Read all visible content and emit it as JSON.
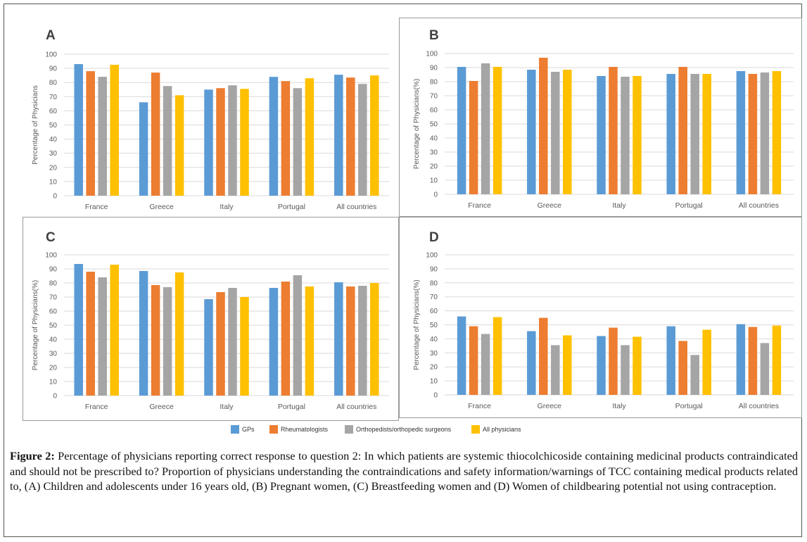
{
  "chart_data": [
    {
      "type": "bar",
      "panel_label": "A",
      "categories": [
        "France",
        "Greece",
        "Italy",
        "Portugal",
        "All countries"
      ],
      "ylabel": "Percentage of Physicians",
      "ylim": [
        0,
        100
      ],
      "yticks": [
        0,
        10,
        20,
        30,
        40,
        50,
        60,
        70,
        80,
        90,
        100
      ],
      "grid": true,
      "series": [
        {
          "name": "GPs",
          "values": [
            93,
            66,
            75,
            84,
            85.5
          ]
        },
        {
          "name": "Rheumatologists",
          "values": [
            88,
            87,
            76,
            81,
            83.5
          ]
        },
        {
          "name": "Orthopedists/orthopedic surgeons",
          "values": [
            84,
            77.5,
            78,
            76,
            79
          ]
        },
        {
          "name": "All physicians",
          "values": [
            92.5,
            71,
            75.5,
            83,
            85
          ]
        }
      ]
    },
    {
      "type": "bar",
      "panel_label": "B",
      "categories": [
        "France",
        "Greece",
        "Italy",
        "Portugal",
        "All countries"
      ],
      "ylabel": "Percentage of Physicians(%)",
      "ylim": [
        0,
        100
      ],
      "yticks": [
        0,
        10,
        20,
        30,
        40,
        50,
        60,
        70,
        80,
        90,
        100
      ],
      "grid": true,
      "series": [
        {
          "name": "GPs",
          "values": [
            90.5,
            88.5,
            84,
            85.5,
            87.5
          ]
        },
        {
          "name": "Rheumatologists",
          "values": [
            80.5,
            97,
            90.5,
            90.5,
            85.5
          ]
        },
        {
          "name": "Orthopedists/orthopedic surgeons",
          "values": [
            93,
            87,
            83.5,
            85.5,
            86.5
          ]
        },
        {
          "name": "All physicians",
          "values": [
            90.5,
            88.5,
            84,
            85.5,
            87.5
          ]
        }
      ]
    },
    {
      "type": "bar",
      "panel_label": "C",
      "categories": [
        "France",
        "Greece",
        "Italy",
        "Portugal",
        "All countries"
      ],
      "ylabel": "Percentage of Physicians(%)",
      "ylim": [
        0,
        100
      ],
      "yticks": [
        0,
        10,
        20,
        30,
        40,
        50,
        60,
        70,
        80,
        90,
        100
      ],
      "grid": true,
      "series": [
        {
          "name": "GPs",
          "values": [
            93.5,
            88.5,
            68.5,
            76.5,
            80.5
          ]
        },
        {
          "name": "Rheumatologists",
          "values": [
            88,
            78.5,
            73.5,
            81,
            77.5
          ]
        },
        {
          "name": "Orthopedists/orthopedic surgeons",
          "values": [
            84,
            77,
            76.5,
            85.5,
            78
          ]
        },
        {
          "name": "All physicians",
          "values": [
            93,
            87.5,
            70,
            77.5,
            80
          ]
        }
      ]
    },
    {
      "type": "bar",
      "panel_label": "D",
      "categories": [
        "France",
        "Greece",
        "Italy",
        "Portugal",
        "All countries"
      ],
      "ylabel": "Percentage of Physicians(%)",
      "ylim": [
        0,
        100
      ],
      "yticks": [
        0,
        10,
        20,
        30,
        40,
        50,
        60,
        70,
        80,
        90,
        100
      ],
      "grid": true,
      "series": [
        {
          "name": "GPs",
          "values": [
            56,
            45.5,
            42,
            49,
            50.5
          ]
        },
        {
          "name": "Rheumatologists",
          "values": [
            49,
            55,
            48,
            38.5,
            48.5
          ]
        },
        {
          "name": "Orthopedists/orthopedic surgeons",
          "values": [
            43.5,
            35.5,
            35.5,
            28.5,
            37
          ]
        },
        {
          "name": "All physicians",
          "values": [
            55.5,
            42.5,
            41.5,
            46.5,
            49.5
          ]
        }
      ]
    }
  ],
  "legend": {
    "placement": "bottom",
    "items": [
      {
        "name": "GPs",
        "color": "#5b9bd5"
      },
      {
        "name": "Rheumatologists",
        "color": "#ed7d31"
      },
      {
        "name": "Orthopedists/orthopedic surgeons",
        "color": "#a5a5a5"
      },
      {
        "name": "All physicians",
        "color": "#ffc000"
      }
    ]
  },
  "colors": {
    "gps": "#5b9bd5",
    "rheumatologists": "#ed7d31",
    "orthopedists": "#a5a5a5",
    "all_physicians": "#ffc000",
    "gridline": "#d9d9d9",
    "axis_text": "#595959"
  },
  "caption": {
    "label": "Figure 2:",
    "text": "Percentage of physicians reporting correct response to question 2: In which patients are systemic thiocolchicoside containing medicinal products contraindicated and should not be prescribed to? Proportion of physicians understanding the contraindications and safety information/warnings of TCC containing medical products related to, (A) Children and adolescents under 16 years old, (B) Pregnant women, (C) Breastfeeding women and (D) Women of childbearing potential not using contraception."
  }
}
